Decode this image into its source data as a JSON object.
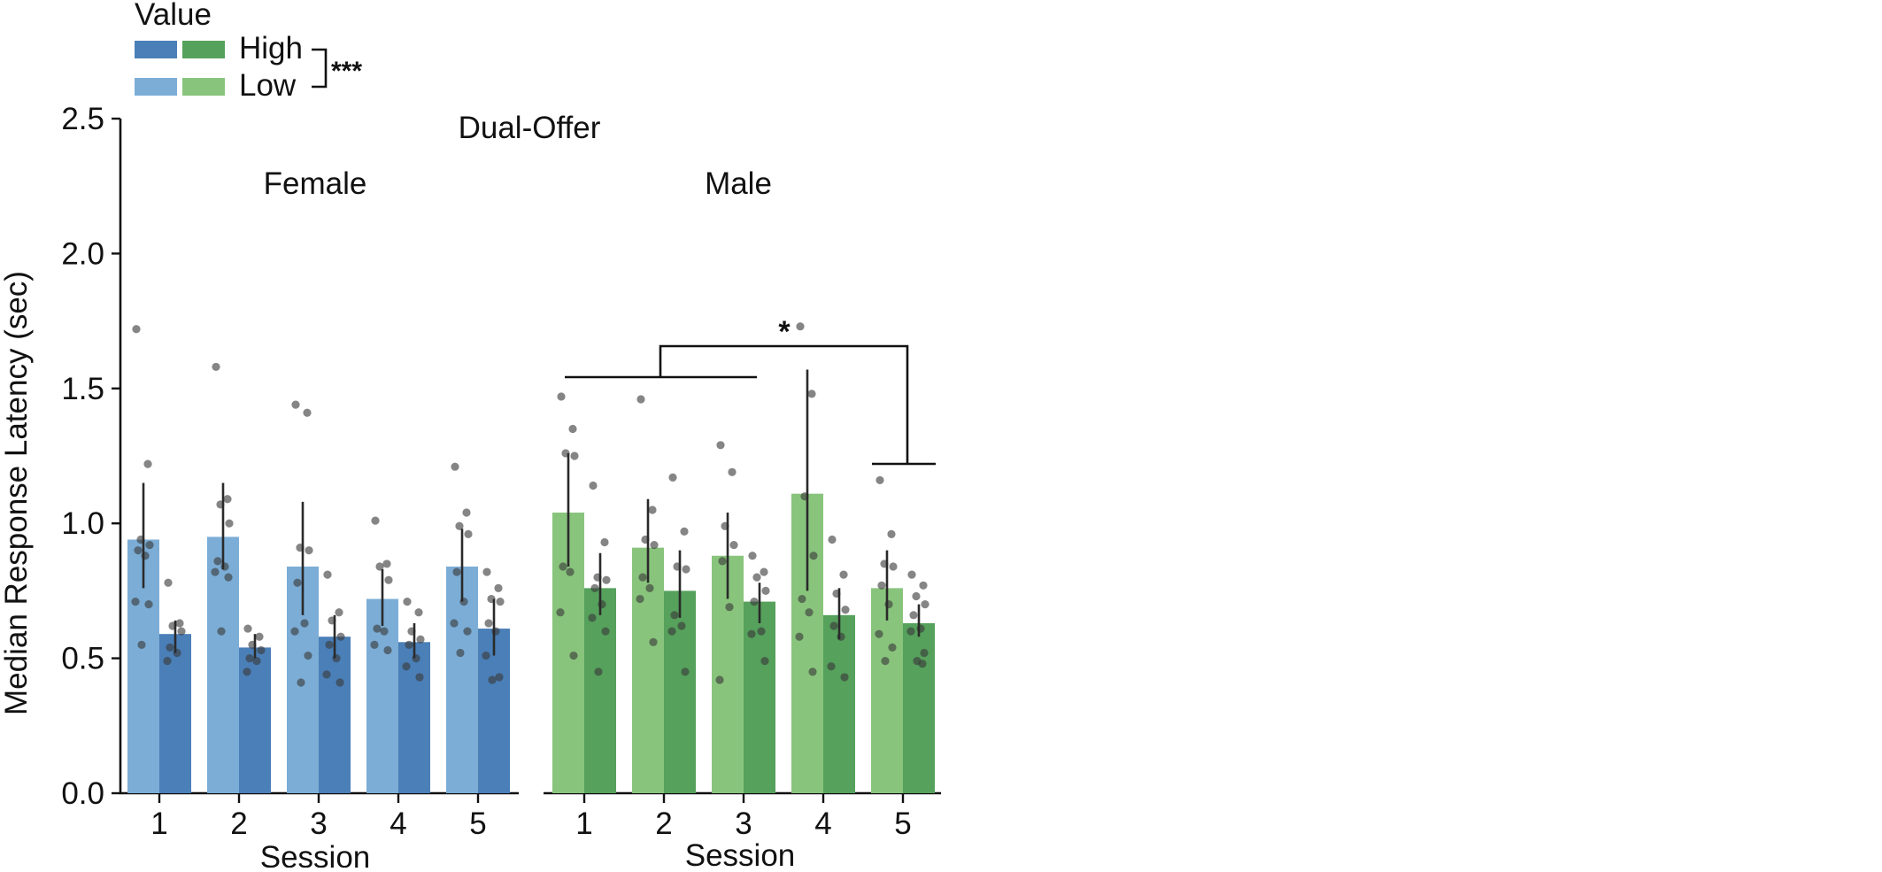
{
  "colors": {
    "female_high": "#4a7fb8",
    "female_low": "#7badd6",
    "male_high": "#56a15c",
    "male_low": "#89c47d",
    "axis": "#111111",
    "error_bar": "#2a2a2a",
    "points": "#3a3a3a"
  },
  "legend": {
    "title": "Value",
    "high_label": "High",
    "low_label": "Low",
    "significance": "***"
  },
  "chart_data": {
    "type": "bar",
    "title": "Dual-Offer",
    "ylabel": "Median Response Latency (sec)",
    "ylim": [
      0,
      2.5
    ],
    "yticks": [
      "0.0",
      "0.5",
      "1.0",
      "1.5",
      "2.0",
      "2.5"
    ],
    "ytick_values": [
      0,
      0.5,
      1.0,
      1.5,
      2.0,
      2.5
    ],
    "categories": [
      "1",
      "2",
      "3",
      "4",
      "5"
    ],
    "grid": false,
    "legend_position": "top-left",
    "panels": [
      {
        "name": "Female",
        "xlabel": "Session",
        "series": [
          {
            "name": "Low",
            "color_key": "female_low",
            "values": [
              0.94,
              0.95,
              0.84,
              0.72,
              0.84
            ],
            "err_low": [
              0.76,
              0.83,
              0.66,
              0.62,
              0.71
            ],
            "err_high": [
              1.15,
              1.15,
              1.08,
              0.83,
              0.98
            ],
            "points": [
              [
                1.72,
                1.22,
                0.94,
                0.92,
                0.9,
                0.88,
                0.71,
                0.7,
                0.55
              ],
              [
                1.58,
                1.09,
                1.07,
                1.0,
                0.86,
                0.84,
                0.82,
                0.8,
                0.6
              ],
              [
                1.44,
                1.41,
                0.91,
                0.9,
                0.78,
                0.63,
                0.6,
                0.51,
                0.41
              ],
              [
                1.01,
                0.85,
                0.84,
                0.79,
                0.61,
                0.6,
                0.55,
                0.53
              ],
              [
                1.21,
                1.04,
                0.99,
                0.96,
                0.82,
                0.71,
                0.63,
                0.6,
                0.52
              ]
            ]
          },
          {
            "name": "High",
            "color_key": "female_high",
            "values": [
              0.59,
              0.54,
              0.58,
              0.56,
              0.61
            ],
            "err_low": [
              0.52,
              0.5,
              0.5,
              0.5,
              0.51
            ],
            "err_high": [
              0.64,
              0.59,
              0.66,
              0.63,
              0.72
            ],
            "points": [
              [
                0.78,
                0.63,
                0.62,
                0.6,
                0.54,
                0.52,
                0.49
              ],
              [
                0.61,
                0.58,
                0.55,
                0.53,
                0.5,
                0.49,
                0.45
              ],
              [
                0.81,
                0.67,
                0.64,
                0.58,
                0.55,
                0.5,
                0.44,
                0.41
              ],
              [
                0.71,
                0.67,
                0.6,
                0.57,
                0.55,
                0.5,
                0.47,
                0.43
              ],
              [
                0.82,
                0.76,
                0.72,
                0.71,
                0.63,
                0.6,
                0.51,
                0.43,
                0.42
              ]
            ]
          }
        ]
      },
      {
        "name": "Male",
        "xlabel": "Session",
        "series": [
          {
            "name": "Low",
            "color_key": "male_low",
            "values": [
              1.04,
              0.91,
              0.88,
              1.11,
              0.76
            ],
            "err_low": [
              0.84,
              0.78,
              0.72,
              0.75,
              0.64
            ],
            "err_high": [
              1.26,
              1.09,
              1.04,
              1.57,
              0.9
            ],
            "points": [
              [
                1.47,
                1.35,
                1.26,
                1.25,
                0.84,
                0.82,
                0.67,
                0.51
              ],
              [
                1.46,
                1.05,
                0.94,
                0.92,
                0.8,
                0.76,
                0.72,
                0.56
              ],
              [
                1.29,
                1.19,
                0.99,
                0.92,
                0.86,
                0.69,
                0.42
              ],
              [
                1.73,
                1.48,
                1.1,
                0.88,
                0.72,
                0.67,
                0.58,
                0.45
              ],
              [
                1.16,
                0.96,
                0.85,
                0.84,
                0.77,
                0.7,
                0.59,
                0.54,
                0.49
              ]
            ]
          },
          {
            "name": "High",
            "color_key": "male_high",
            "values": [
              0.76,
              0.75,
              0.71,
              0.66,
              0.63
            ],
            "err_low": [
              0.66,
              0.65,
              0.63,
              0.57,
              0.58
            ],
            "err_high": [
              0.89,
              0.9,
              0.78,
              0.76,
              0.7
            ],
            "points": [
              [
                1.14,
                0.93,
                0.8,
                0.79,
                0.76,
                0.7,
                0.65,
                0.6,
                0.45
              ],
              [
                1.17,
                0.97,
                0.84,
                0.83,
                0.66,
                0.62,
                0.6,
                0.45
              ],
              [
                0.88,
                0.82,
                0.8,
                0.75,
                0.71,
                0.6,
                0.59,
                0.49
              ],
              [
                0.94,
                0.81,
                0.74,
                0.68,
                0.62,
                0.58,
                0.47,
                0.43
              ],
              [
                0.81,
                0.77,
                0.73,
                0.7,
                0.66,
                0.61,
                0.6,
                0.52,
                0.49,
                0.48
              ]
            ]
          }
        ]
      }
    ],
    "annotations": [
      {
        "text": "*",
        "panel": "Male",
        "from_sessions": [
          "1",
          "3"
        ],
        "to_session": "5"
      }
    ]
  }
}
